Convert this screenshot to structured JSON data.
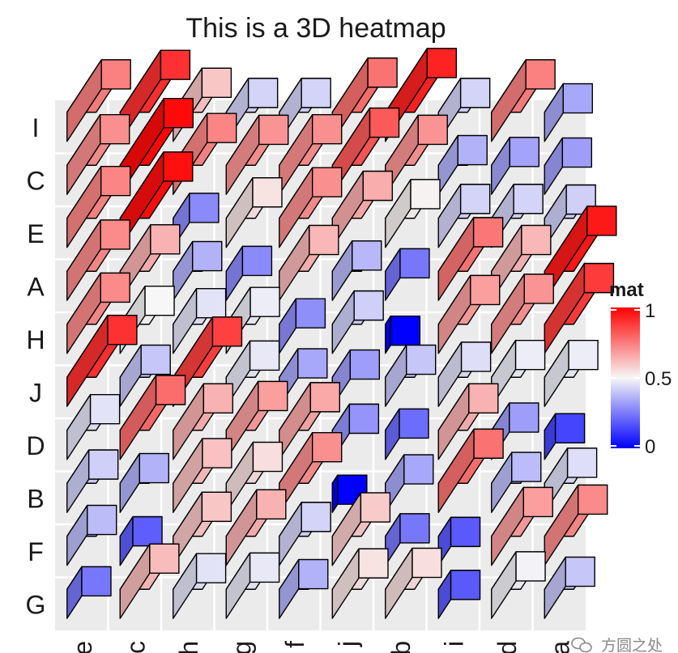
{
  "chart_data": {
    "type": "heatmap",
    "style": "3d-bars",
    "title": "This is a 3D heatmap",
    "x_categories": [
      "e",
      "c",
      "h",
      "g",
      "f",
      "j",
      "b",
      "i",
      "d",
      "a"
    ],
    "y_categories": [
      "I",
      "C",
      "E",
      "A",
      "H",
      "J",
      "D",
      "B",
      "F",
      "G"
    ],
    "values": [
      [
        0.74,
        0.9,
        0.6,
        0.43,
        0.43,
        0.77,
        0.93,
        0.43,
        0.74,
        0.34
      ],
      [
        0.71,
        0.98,
        0.73,
        0.7,
        0.71,
        0.82,
        0.7,
        0.36,
        0.33,
        0.32
      ],
      [
        0.73,
        0.97,
        0.28,
        0.54,
        0.71,
        0.65,
        0.51,
        0.43,
        0.43,
        0.42
      ],
      [
        0.72,
        0.64,
        0.36,
        0.28,
        0.63,
        0.37,
        0.24,
        0.76,
        0.63,
        0.95
      ],
      [
        0.72,
        0.5,
        0.46,
        0.48,
        0.29,
        0.42,
        0.0,
        0.68,
        0.7,
        0.88
      ],
      [
        0.9,
        0.4,
        0.87,
        0.47,
        0.34,
        0.32,
        0.4,
        0.45,
        0.48,
        0.48
      ],
      [
        0.46,
        0.78,
        0.64,
        0.68,
        0.66,
        0.3,
        0.22,
        0.64,
        0.32,
        0.14
      ],
      [
        0.42,
        0.36,
        0.61,
        0.55,
        0.71,
        0.0,
        0.34,
        0.77,
        0.38,
        0.45
      ],
      [
        0.38,
        0.19,
        0.6,
        0.64,
        0.43,
        0.59,
        0.24,
        0.18,
        0.68,
        0.72
      ],
      [
        0.24,
        0.62,
        0.46,
        0.47,
        0.36,
        0.54,
        0.55,
        0.18,
        0.49,
        0.4
      ]
    ],
    "legend": {
      "title": "mat",
      "ticks": [
        "0",
        "0.5",
        "1"
      ],
      "tick_values": [
        0,
        0.5,
        1
      ],
      "colors": {
        "low": "#0000FF",
        "mid": "#F7F7F7",
        "high": "#FF0000"
      },
      "position": "right"
    },
    "panel_background": "#EBEBEB",
    "grid_color": "#FFFFFF",
    "bar_outline": "#000000"
  },
  "watermark": {
    "icon": "wechat-icon",
    "text": "方圆之处"
  }
}
